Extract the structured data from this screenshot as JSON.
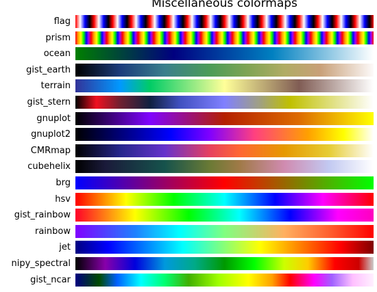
{
  "title": "Miscellaneous colormaps",
  "colormaps": [
    "flag",
    "prism",
    "ocean",
    "gist_earth",
    "terrain",
    "gist_stern",
    "gnuplot",
    "gnuplot2",
    "CMRmap",
    "cubehelix",
    "brg",
    "hsv",
    "gist_rainbow",
    "rainbow",
    "jet",
    "nipy_spectral",
    "gist_ncar"
  ]
}
